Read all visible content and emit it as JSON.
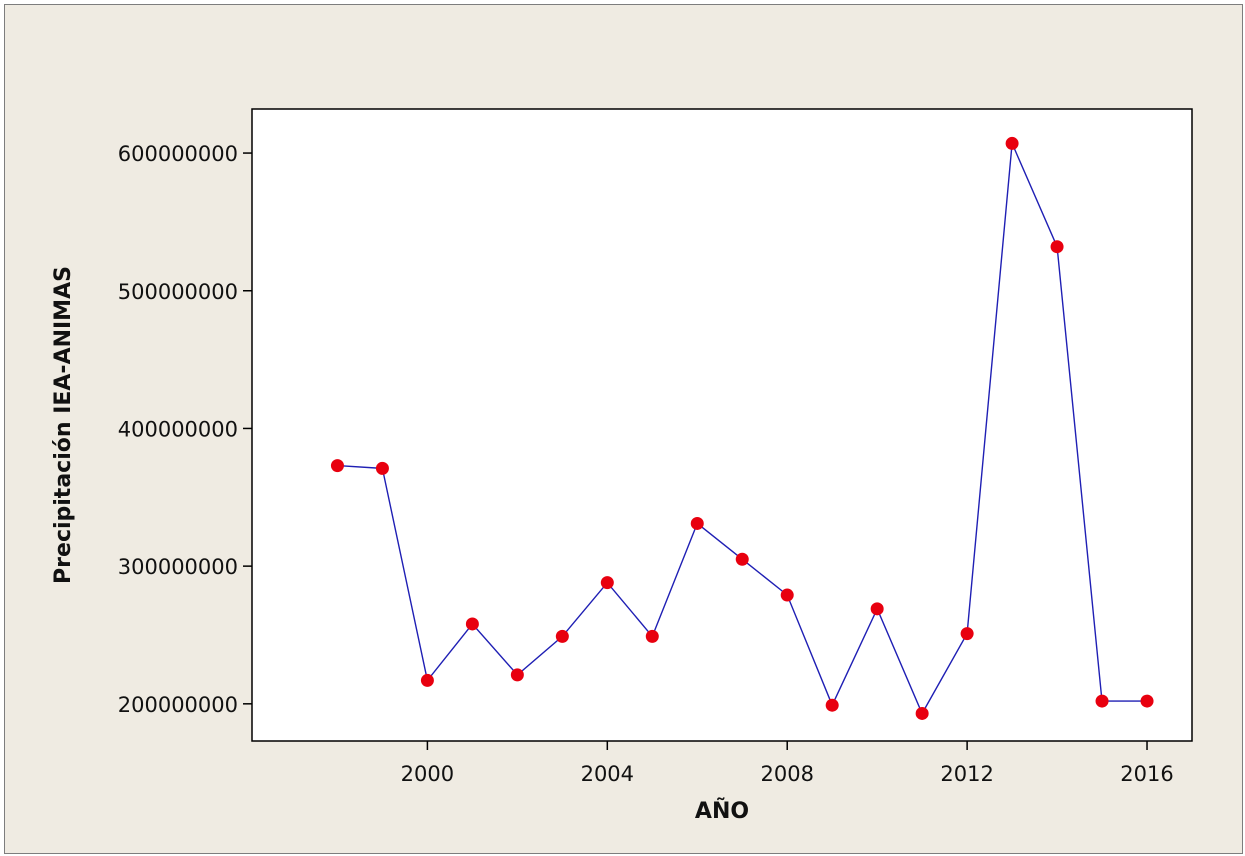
{
  "chart_data": {
    "type": "line",
    "title": "",
    "xlabel": "AÑO",
    "ylabel": "Precipitación IEA-ANIMAS",
    "xlim": [
      1996.1,
      2017.0
    ],
    "ylim": [
      173000000,
      632000000
    ],
    "x_ticks": [
      2000,
      2004,
      2008,
      2012,
      2016
    ],
    "x_tick_labels": [
      "2000",
      "2004",
      "2008",
      "2012",
      "2016"
    ],
    "y_ticks": [
      200000000,
      300000000,
      400000000,
      500000000,
      600000000
    ],
    "y_tick_labels": [
      "200000000",
      "300000000",
      "400000000",
      "500000000",
      "600000000"
    ],
    "grid": false,
    "legend": "none",
    "series": [
      {
        "x": [
          1998,
          1999,
          2000,
          2001,
          2002,
          2003,
          2004,
          2005,
          2006,
          2007,
          2008,
          2009,
          2010,
          2011,
          2012,
          2013,
          2014,
          2015,
          2016
        ],
        "y": [
          373000000,
          371000000,
          217000000,
          258000000,
          221000000,
          249000000,
          288000000,
          249000000,
          331000000,
          305000000,
          279000000,
          199000000,
          269000000,
          193000000,
          251000000,
          607000000,
          532000000,
          202000000,
          202000000
        ]
      }
    ],
    "colors": {
      "line": "#1f1fb4",
      "marker": "#e8000f",
      "background": "#efebe2",
      "plot_area": "#ffffff",
      "axis": "#000000"
    }
  }
}
